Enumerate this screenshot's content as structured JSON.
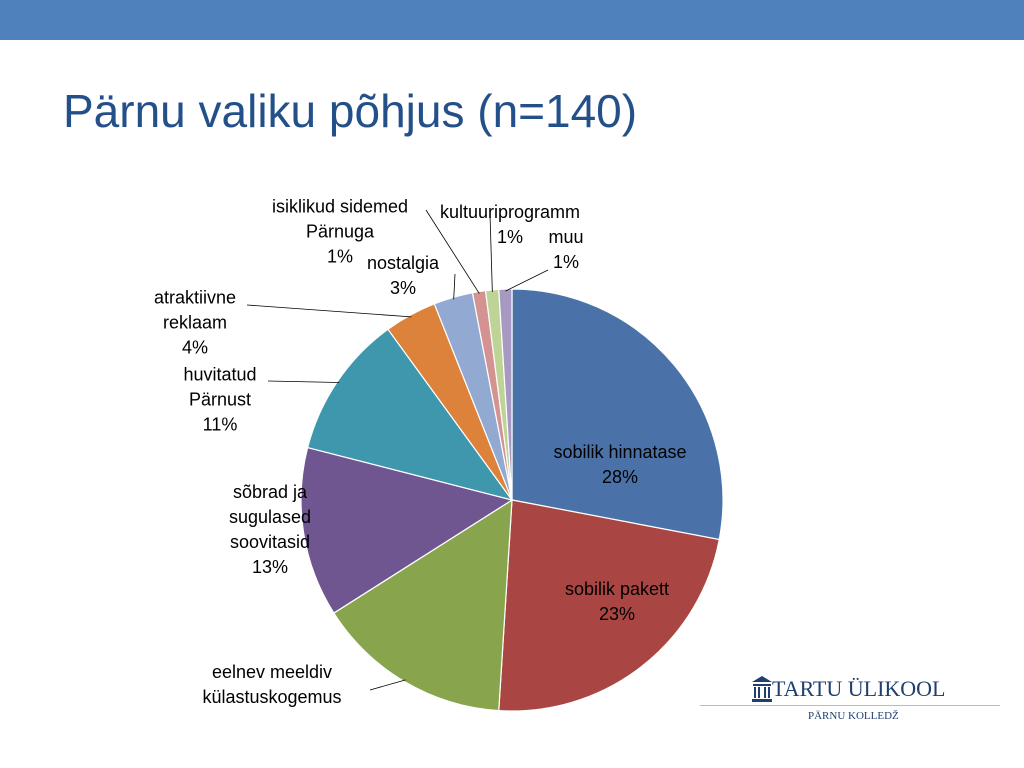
{
  "chart_data": {
    "type": "pie",
    "title": "Pärnu valiku põhjus (n=140)",
    "categories": [
      "sobilik hinnatase",
      "sobilik pakett",
      "eelnev meeldiv külastuskogemus",
      "sõbrad ja sugulased soovitasid",
      "huvitatud Pärnust",
      "atraktiivne reklaam",
      "nostalgia",
      "isiklikud sidemed Pärnuga",
      "kultuuriprogramm",
      "muu"
    ],
    "values": [
      28,
      23,
      15,
      13,
      11,
      4,
      3,
      1,
      1,
      1
    ],
    "value_labels": [
      "28%",
      "23%",
      null,
      "13%",
      "11%",
      "4%",
      "3%",
      "1%",
      "1%",
      "1%"
    ],
    "colors": [
      "#4a72a8",
      "#a94542",
      "#88a54e",
      "#6f5690",
      "#3f97ad",
      "#dc823a",
      "#92a9d1",
      "#d49391",
      "#bed496",
      "#a799c1"
    ]
  },
  "logo": {
    "name": "TARTU ÜLIKOOL",
    "subtitle": "PÄRNU KOLLEDŽ"
  }
}
